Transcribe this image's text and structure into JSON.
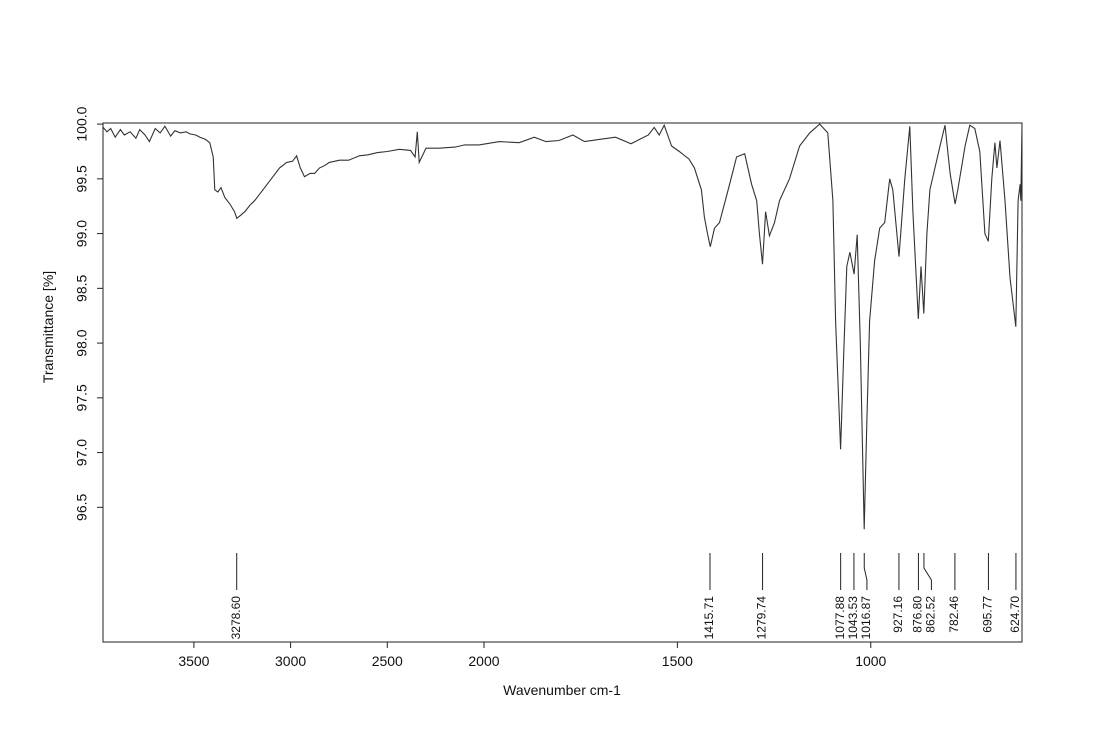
{
  "chart_data": {
    "type": "line",
    "xlabel": "Wavenumber cm-1",
    "ylabel": "Transmittance [%]",
    "xlim": [
      3970,
      609
    ],
    "x_break": 2000,
    "ylim": [
      95.27,
      100.01
    ],
    "xticks": [
      3500,
      3000,
      2500,
      2000,
      1500,
      1000
    ],
    "yticks": [
      {
        "value": 96.5,
        "label": "96.5"
      },
      {
        "value": 97,
        "label": "97.0"
      },
      {
        "value": 97.5,
        "label": "97.5"
      },
      {
        "value": 98,
        "label": "98.0"
      },
      {
        "value": 98.5,
        "label": "98.5"
      },
      {
        "value": 99,
        "label": "99.0"
      },
      {
        "value": 99.5,
        "label": "99.5"
      },
      {
        "value": 100,
        "label": "100.0"
      }
    ],
    "series": [
      {
        "color": "#333333",
        "x": [
          3969,
          3950,
          3930,
          3907,
          3880,
          3860,
          3830,
          3800,
          3780,
          3753,
          3730,
          3700,
          3675,
          3650,
          3620,
          3598,
          3570,
          3540,
          3521,
          3490,
          3469,
          3440,
          3418,
          3400,
          3392,
          3376,
          3360,
          3340,
          3314,
          3290,
          3278,
          3263,
          3237,
          3210,
          3186,
          3160,
          3134,
          3100,
          3057,
          3020,
          2990,
          2969,
          2950,
          2928,
          2900,
          2876,
          2850,
          2825,
          2800,
          2747,
          2700,
          2644,
          2600,
          2550,
          2500,
          2438,
          2380,
          2356,
          2345,
          2335,
          2300,
          2232,
          2150,
          2100,
          2026,
          1960,
          1909,
          1870,
          1840,
          1806,
          1770,
          1740,
          1702,
          1660,
          1620,
          1598,
          1575,
          1560,
          1547,
          1534,
          1515,
          1495,
          1470,
          1456,
          1438,
          1430,
          1422,
          1415,
          1404,
          1391,
          1365,
          1347,
          1326,
          1308,
          1295,
          1288,
          1280,
          1272,
          1262,
          1249,
          1236,
          1210,
          1184,
          1158,
          1132,
          1111,
          1098,
          1091,
          1078,
          1070,
          1062,
          1054,
          1043,
          1035,
          1027,
          1017,
          1010,
          1003,
          990,
          977,
          964,
          951,
          943,
          927,
          912,
          899,
          891,
          877,
          870,
          863,
          855,
          847,
          821,
          808,
          795,
          782,
          775,
          756,
          744,
          731,
          718,
          705,
          696,
          687,
          679,
          674,
          666,
          653,
          640,
          625,
          619,
          614,
          612,
          609
        ],
        "values": [
          99.97,
          99.93,
          99.96,
          99.88,
          99.95,
          99.9,
          99.93,
          99.87,
          99.95,
          99.9,
          99.84,
          99.96,
          99.92,
          99.98,
          99.89,
          99.94,
          99.92,
          99.93,
          99.91,
          99.9,
          99.88,
          99.86,
          99.83,
          99.7,
          99.4,
          99.38,
          99.42,
          99.33,
          99.27,
          99.2,
          99.14,
          99.16,
          99.2,
          99.26,
          99.3,
          99.36,
          99.42,
          99.5,
          99.6,
          99.65,
          99.66,
          99.71,
          99.6,
          99.52,
          99.55,
          99.55,
          99.6,
          99.62,
          99.65,
          99.67,
          99.67,
          99.71,
          99.72,
          99.74,
          99.75,
          99.77,
          99.76,
          99.7,
          99.93,
          99.65,
          99.78,
          99.78,
          99.79,
          99.81,
          99.81,
          99.84,
          99.83,
          99.88,
          99.84,
          99.85,
          99.9,
          99.84,
          99.86,
          99.88,
          99.82,
          99.86,
          99.9,
          99.97,
          99.9,
          99.99,
          99.8,
          99.75,
          99.68,
          99.6,
          99.4,
          99.15,
          99,
          98.88,
          99.05,
          99.1,
          99.45,
          99.7,
          99.73,
          99.45,
          99.3,
          99,
          98.72,
          99.2,
          98.98,
          99.1,
          99.3,
          99.5,
          99.8,
          99.92,
          100,
          99.92,
          99.3,
          98.2,
          97.03,
          97.9,
          98.7,
          98.83,
          98.63,
          98.99,
          98,
          96.3,
          97.3,
          98.2,
          98.75,
          99.05,
          99.1,
          99.5,
          99.4,
          98.79,
          99.5,
          99.98,
          99.2,
          98.22,
          98.7,
          98.27,
          99,
          99.4,
          99.8,
          99.99,
          99.55,
          99.27,
          99.4,
          99.8,
          99.99,
          99.96,
          99.75,
          99,
          98.93,
          99.5,
          99.83,
          99.6,
          99.85,
          99.3,
          98.6,
          98.15,
          99.3,
          99.45,
          99.3,
          100
        ]
      }
    ],
    "peaks": [
      {
        "value": 3278.6,
        "label": "3278.60"
      },
      {
        "value": 1415.71,
        "label": "1415.71"
      },
      {
        "value": 1279.74,
        "label": "1279.74"
      },
      {
        "value": 1077.88,
        "label": "1077.88"
      },
      {
        "value": 1043.53,
        "label": "1043.53"
      },
      {
        "value": 1016.87,
        "label": "1016.87"
      },
      {
        "value": 927.16,
        "label": "927.16"
      },
      {
        "value": 876.8,
        "label": "876.80"
      },
      {
        "value": 862.52,
        "label": "862.52"
      },
      {
        "value": 782.46,
        "label": "782.46"
      },
      {
        "value": 695.77,
        "label": "695.77"
      },
      {
        "value": 624.7,
        "label": "624.70"
      }
    ]
  }
}
